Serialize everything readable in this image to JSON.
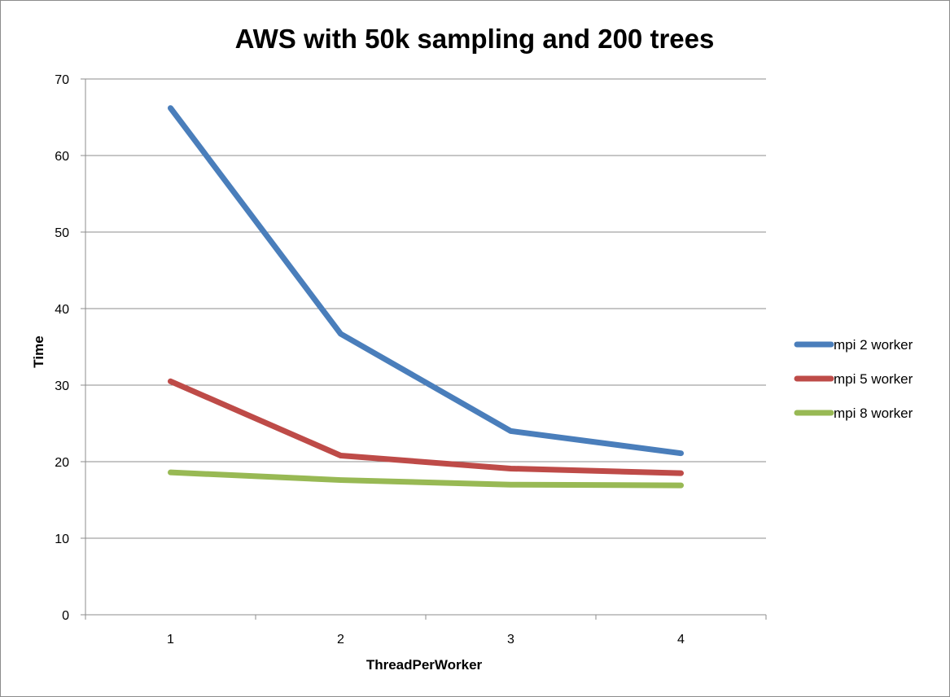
{
  "chart_data": {
    "type": "line",
    "title": "AWS with 50k sampling and 200 trees",
    "xlabel": "ThreadPerWorker",
    "ylabel": "Time",
    "categories": [
      "1",
      "2",
      "3",
      "4"
    ],
    "ylim": [
      0,
      70
    ],
    "yticks": [
      "0",
      "10",
      "20",
      "30",
      "40",
      "50",
      "60",
      "70"
    ],
    "grid": true,
    "legend_position": "right",
    "series": [
      {
        "name": "mpi 2 worker",
        "color": "#4a7ebb",
        "values": [
          66.2,
          36.7,
          24.0,
          21.1
        ]
      },
      {
        "name": "mpi 5 worker",
        "color": "#be4b48",
        "values": [
          30.5,
          20.8,
          19.1,
          18.5
        ]
      },
      {
        "name": "mpi 8 worker",
        "color": "#98b954",
        "values": [
          18.6,
          17.6,
          17.0,
          16.9
        ]
      }
    ]
  }
}
